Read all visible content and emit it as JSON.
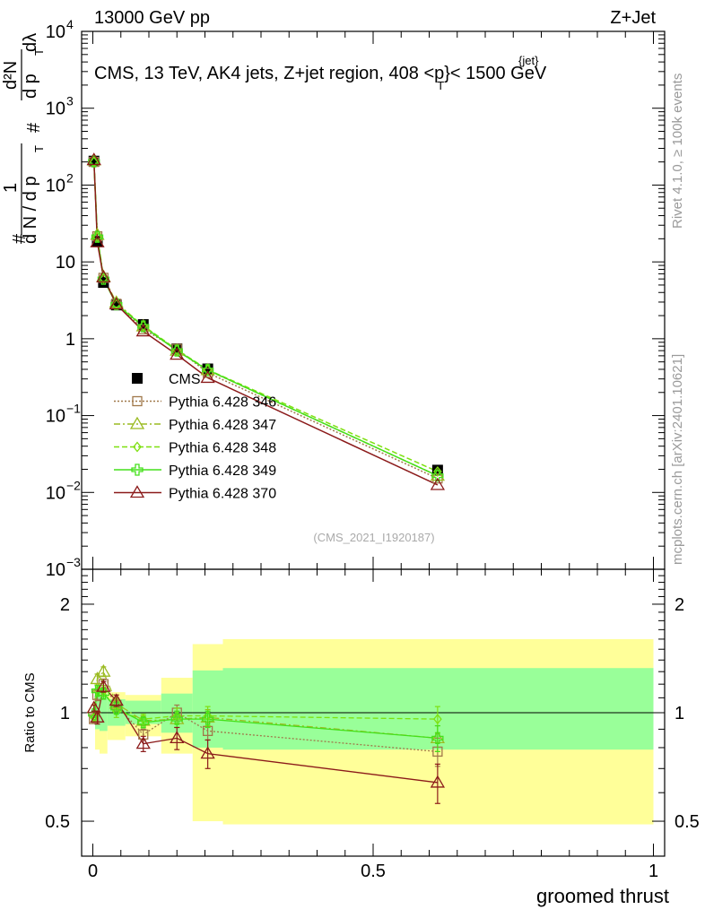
{
  "header": {
    "left": "13000 GeV pp",
    "right": "Z+Jet"
  },
  "side_labels": {
    "rivet": "Rivet 4.1.0, ≥ 100k events",
    "mcplots": "mcplots.cern.ch [arXiv:2401.10621]"
  },
  "analysis_id": "(CMS_2021_I1920187)",
  "colors": {
    "cms": "#000000",
    "p346": "#a0784a",
    "p347": "#9bbb22",
    "p348": "#7ee010",
    "p349": "#44e01a",
    "p370": "#8b1a1a",
    "band_outer": "#ffff99",
    "band_inner": "#99ff99"
  },
  "chart_data": [
    {
      "type": "line",
      "scale": "log",
      "title_parts": {
        "prefix": "CMS, 13 TeV, AK4 jets, Z+jet region, 408 <",
        "p": "p",
        "sub": "T",
        "sup": "{jet}",
        "suffix": "}< 1500 GeV"
      },
      "ylabel_parts": {
        "num_hash": "#",
        "one": "1",
        "dN": "d N / d p",
        "T": "T",
        "hash2": "#",
        "d2N": "d²N",
        "dp": "d p",
        "dl": "dλ"
      },
      "ylim": [
        0.001,
        10000
      ],
      "yticks": [
        {
          "value": 0.001,
          "base": "10",
          "exp": "−3"
        },
        {
          "value": 0.01,
          "base": "10",
          "exp": "−2"
        },
        {
          "value": 0.1,
          "base": "10",
          "exp": "−1"
        },
        {
          "value": 1,
          "base": "1",
          "exp": ""
        },
        {
          "value": 10,
          "base": "10",
          "exp": ""
        },
        {
          "value": 100,
          "base": "10",
          "exp": "2"
        },
        {
          "value": 1000,
          "base": "10",
          "exp": "3"
        },
        {
          "value": 10000,
          "base": "10",
          "exp": "4"
        }
      ],
      "x": [
        0.002,
        0.008,
        0.019,
        0.042,
        0.09,
        0.15,
        0.205,
        0.615
      ],
      "series": [
        {
          "name": "CMS",
          "key": "cms",
          "marker": "square",
          "values": [
            205,
            18.5,
            5.4,
            2.75,
            1.53,
            0.74,
            0.405,
            0.0195
          ]
        },
        {
          "name": "Pythia 6.428 346",
          "key": "p346",
          "marker": "open-square",
          "dash": "2,2",
          "values": [
            200,
            21.5,
            6.2,
            2.85,
            1.33,
            0.74,
            0.36,
            0.0152
          ]
        },
        {
          "name": "Pythia 6.428 347",
          "key": "p347",
          "marker": "open-triangle",
          "dash": "7,3,2,3",
          "values": [
            210,
            22.5,
            6.4,
            2.95,
            1.45,
            0.7,
            0.39,
            0.0165
          ]
        },
        {
          "name": "Pythia 6.428 348",
          "key": "p348",
          "marker": "open-diamond",
          "dash": "6,3",
          "values": [
            200,
            21.0,
            6.1,
            2.8,
            1.48,
            0.72,
            0.395,
            0.0187
          ]
        },
        {
          "name": "Pythia 6.428 349",
          "key": "p349",
          "marker": "cross",
          "dash": "",
          "values": [
            203,
            21.2,
            6.0,
            2.8,
            1.45,
            0.7,
            0.392,
            0.0165
          ]
        },
        {
          "name": "Pythia 6.428 370",
          "key": "p370",
          "marker": "open-triangle",
          "dash": "",
          "values": [
            212,
            18.0,
            6.3,
            2.8,
            1.25,
            0.62,
            0.31,
            0.0125
          ]
        }
      ]
    },
    {
      "type": "line",
      "scale": "log",
      "ylabel": "Ratio to CMS",
      "xlabel": "groomed thrust",
      "xlim": [
        -0.02,
        1.02
      ],
      "ylim": [
        0.4,
        2.5
      ],
      "yticks": [
        {
          "value": 0.5,
          "label": "0.5"
        },
        {
          "value": 1,
          "label": "1"
        },
        {
          "value": 2,
          "label": "2"
        }
      ],
      "xticks": [
        {
          "value": 0,
          "label": "0"
        },
        {
          "value": 0.5,
          "label": "0.5"
        },
        {
          "value": 1,
          "label": "1"
        }
      ],
      "bins": [
        0,
        0.004,
        0.012,
        0.026,
        0.058,
        0.122,
        0.178,
        0.232,
        1.0
      ],
      "band_outer": [
        [
          0.95,
          1.07
        ],
        [
          0.79,
          1.14
        ],
        [
          0.77,
          1.18
        ],
        [
          0.84,
          1.14
        ],
        [
          0.86,
          1.12
        ],
        [
          0.77,
          1.25
        ],
        [
          0.5,
          1.55
        ],
        [
          0.49,
          1.6
        ]
      ],
      "band_inner": [
        [
          0.97,
          1.04
        ],
        [
          0.9,
          1.12
        ],
        [
          0.89,
          1.13
        ],
        [
          0.92,
          1.09
        ],
        [
          0.93,
          1.08
        ],
        [
          0.88,
          1.13
        ],
        [
          0.8,
          1.31
        ],
        [
          0.79,
          1.33
        ]
      ],
      "x": [
        0.002,
        0.008,
        0.019,
        0.042,
        0.09,
        0.15,
        0.205,
        0.615
      ],
      "series": [
        {
          "name": "Pythia 6.428 346",
          "key": "p346",
          "marker": "open-square",
          "dash": "2,2",
          "values": [
            0.96,
            1.12,
            1.2,
            1.05,
            0.87,
            1.0,
            0.89,
            0.78
          ],
          "errors": [
            0.02,
            0.04,
            0.04,
            0.04,
            0.03,
            0.05,
            0.05,
            0.07
          ]
        },
        {
          "name": "Pythia 6.428 347",
          "key": "p347",
          "marker": "open-triangle",
          "dash": "7,3,2,3",
          "values": [
            1.03,
            1.24,
            1.3,
            1.06,
            0.95,
            0.96,
            0.97,
            0.85
          ],
          "errors": [
            0.02,
            0.04,
            0.04,
            0.04,
            0.03,
            0.05,
            0.05,
            0.07
          ]
        },
        {
          "name": "Pythia 6.428 348",
          "key": "p348",
          "marker": "open-diamond",
          "dash": "6,3",
          "values": [
            0.97,
            1.15,
            1.15,
            1.01,
            0.96,
            0.98,
            0.98,
            0.96
          ],
          "errors": [
            0.02,
            0.04,
            0.04,
            0.04,
            0.03,
            0.05,
            0.06,
            0.08
          ]
        },
        {
          "name": "Pythia 6.428 349",
          "key": "p349",
          "marker": "cross",
          "dash": "",
          "values": [
            0.99,
            1.15,
            1.13,
            1.03,
            0.94,
            0.96,
            0.96,
            0.85
          ],
          "errors": [
            0.02,
            0.04,
            0.04,
            0.04,
            0.03,
            0.05,
            0.05,
            0.07
          ]
        },
        {
          "name": "Pythia 6.428 370",
          "key": "p370",
          "marker": "open-triangle",
          "dash": "",
          "values": [
            1.03,
            0.97,
            1.18,
            1.08,
            0.82,
            0.85,
            0.77,
            0.64
          ],
          "errors": [
            0.02,
            0.04,
            0.04,
            0.04,
            0.04,
            0.06,
            0.07,
            0.08
          ]
        }
      ]
    }
  ]
}
